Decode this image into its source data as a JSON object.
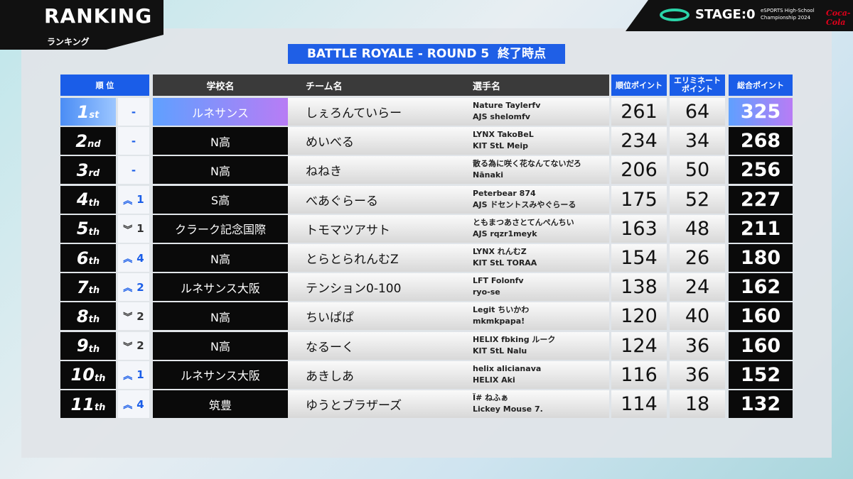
{
  "header": {
    "title": "RANKING",
    "subtitle": "ランキング",
    "logo": "STAGE:0",
    "event": [
      "eSPORTS High-School",
      "Championship 2024"
    ],
    "sponsor": "Coca-Cola"
  },
  "banner": "BATTLE ROYALE - ROUND 5  終了時点",
  "table": {
    "columns": [
      "順 位",
      "学校名",
      "チーム名",
      "選手名",
      "順位ポイント",
      [
        "エリミネート",
        "ポイント"
      ],
      "総合ポイント"
    ],
    "rows": [
      {
        "rank": 1,
        "suffix": "st",
        "change": "-",
        "school": "ルネサンス",
        "team": "しぇろんていらー",
        "players": [
          "Nature Taylerfv",
          "AJS shelomfv"
        ],
        "placement": 261,
        "elimination": 64,
        "total": 325
      },
      {
        "rank": 2,
        "suffix": "nd",
        "change": "-",
        "school": "N高",
        "team": "めいべる",
        "players": [
          "LYNX TakoBeL",
          "KIT StL Meip"
        ],
        "placement": 234,
        "elimination": 34,
        "total": 268
      },
      {
        "rank": 3,
        "suffix": "rd",
        "change": "-",
        "school": "N高",
        "team": "ねねき",
        "players": [
          "散る為に咲く花なんてないだろ",
          "Nānaki"
        ],
        "placement": 206,
        "elimination": 50,
        "total": 256
      },
      {
        "rank": 4,
        "suffix": "th",
        "change": {
          "direction": "up",
          "value": 1
        },
        "school": "S高",
        "team": "べあぐらーる",
        "players": [
          "Peterbear 874",
          "AJS ドセントスみやぐらーる"
        ],
        "placement": 175,
        "elimination": 52,
        "total": 227
      },
      {
        "rank": 5,
        "suffix": "th",
        "change": {
          "direction": "down",
          "value": 1
        },
        "school": "クラーク記念国際",
        "team": "トモマツアサト",
        "players": [
          "ともまつあさとてんぺんちい",
          "AJS rqzr1meyk"
        ],
        "placement": 163,
        "elimination": 48,
        "total": 211
      },
      {
        "rank": 6,
        "suffix": "th",
        "change": {
          "direction": "up",
          "value": 4
        },
        "school": "N高",
        "team": "とらとられんむZ",
        "players": [
          "LYNX れんむZ",
          "KIT StL TORAA"
        ],
        "placement": 154,
        "elimination": 26,
        "total": 180
      },
      {
        "rank": 7,
        "suffix": "th",
        "change": {
          "direction": "up",
          "value": 2
        },
        "school": "ルネサンス大阪",
        "team": "テンション0-100",
        "players": [
          "LFT Folonfv",
          "ryo-se"
        ],
        "placement": 138,
        "elimination": 24,
        "total": 162
      },
      {
        "rank": 8,
        "suffix": "th",
        "change": {
          "direction": "down",
          "value": 2
        },
        "school": "N高",
        "team": "ちいぱぱ",
        "players": [
          "Legit ちいかわ",
          "mkmkpapa!"
        ],
        "placement": 120,
        "elimination": 40,
        "total": 160
      },
      {
        "rank": 9,
        "suffix": "th",
        "change": {
          "direction": "down",
          "value": 2
        },
        "school": "N高",
        "team": "なるーく",
        "players": [
          "HELIX fbking ルーク",
          "KIT StL Nalu"
        ],
        "placement": 124,
        "elimination": 36,
        "total": 160
      },
      {
        "rank": 10,
        "suffix": "th",
        "change": {
          "direction": "up",
          "value": 1
        },
        "school": "ルネサンス大阪",
        "team": "あきしあ",
        "players": [
          "helix alicianava",
          "HELIX Aki"
        ],
        "placement": 116,
        "elimination": 36,
        "total": 152
      },
      {
        "rank": 11,
        "suffix": "th",
        "change": {
          "direction": "up",
          "value": 4
        },
        "school": "筑豊",
        "team": "ゆうとブラザーズ",
        "players": [
          "Ї# ねふぁ",
          "Lickey Mouse 7."
        ],
        "placement": 114,
        "elimination": 18,
        "total": 132
      }
    ]
  }
}
